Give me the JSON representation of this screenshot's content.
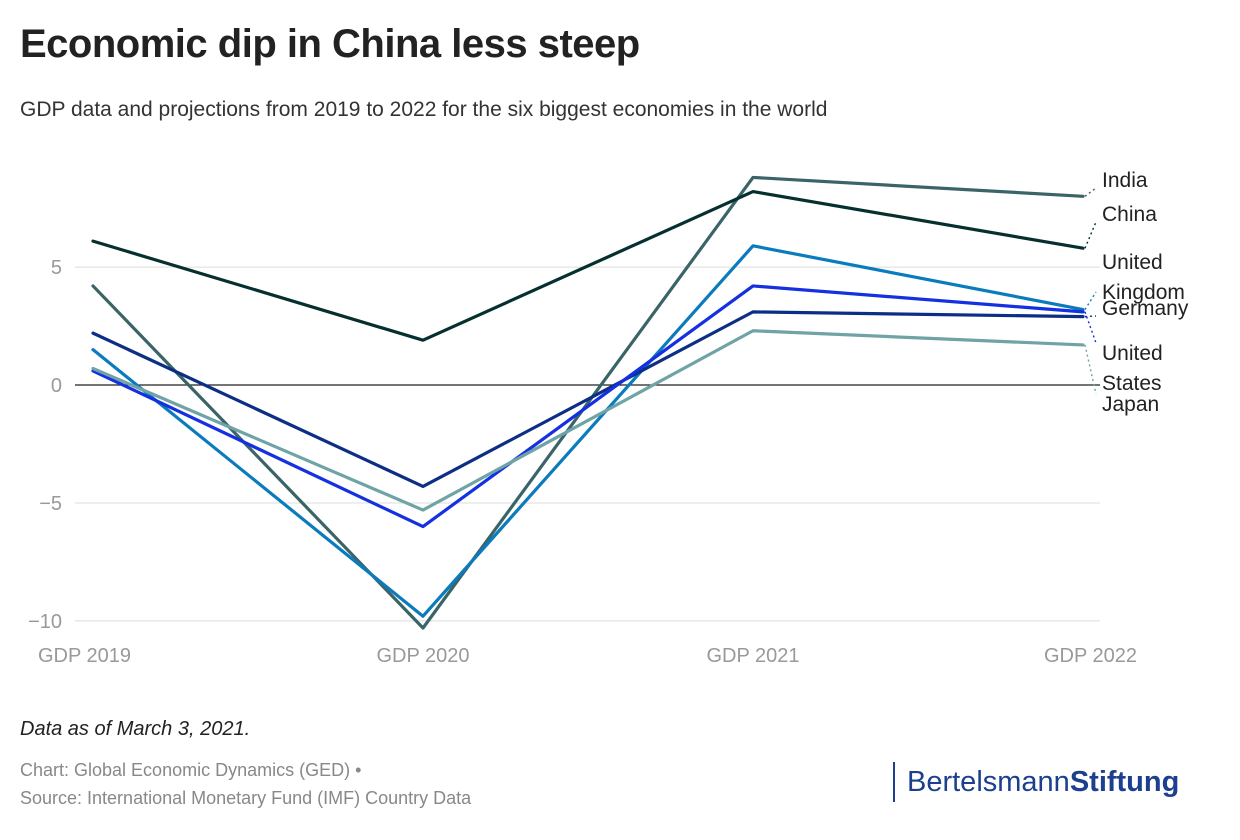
{
  "title": "Economic dip in China less steep",
  "subtitle": "GDP data and projections from 2019 to 2022 for the six biggest economies in the world",
  "note": "Data as of March 3, 2021.",
  "credit_line1": "Chart: Global Economic Dynamics (GED) •",
  "credit_line2": "Source: International Monetary Fund (IMF) Country Data",
  "brand": {
    "part1": "Bertelsmann",
    "part2": "Stiftung",
    "color": "#1c3f8f"
  },
  "chart_data": {
    "type": "line",
    "categories": [
      "GDP 2019",
      "GDP 2020",
      "GDP 2021",
      "GDP 2022"
    ],
    "ylim": [
      -10.3,
      9.2
    ],
    "yticks": [
      5,
      0,
      -5,
      -10
    ],
    "ytick_labels": [
      "5",
      "0",
      "−5",
      "−10"
    ],
    "grid": true,
    "legend": "direct labels at right",
    "series": [
      {
        "name": "India",
        "label_lines": [
          "India"
        ],
        "color": "#3a6467",
        "values": [
          4.2,
          -10.3,
          8.8,
          8.0
        ]
      },
      {
        "name": "China",
        "label_lines": [
          "China"
        ],
        "color": "#06302f",
        "values": [
          6.1,
          1.9,
          8.2,
          5.8
        ]
      },
      {
        "name": "United Kingdom",
        "label_lines": [
          "United",
          "Kingdom"
        ],
        "color": "#0a7bbd",
        "values": [
          1.5,
          -9.8,
          5.9,
          3.2
        ]
      },
      {
        "name": "Germany",
        "label_lines": [
          "Germany"
        ],
        "color": "#0c2f85",
        "values": [
          2.2,
          -4.3,
          3.1,
          2.9
        ]
      },
      {
        "name": "United States",
        "label_lines": [
          "United",
          "States"
        ],
        "color": "#1530e0",
        "values": [
          0.6,
          -6.0,
          4.2,
          3.1
        ]
      },
      {
        "name": "Japan",
        "label_lines": [
          "Japan"
        ],
        "color": "#6fa3a6",
        "values": [
          0.7,
          -5.3,
          2.3,
          1.7
        ]
      }
    ]
  }
}
